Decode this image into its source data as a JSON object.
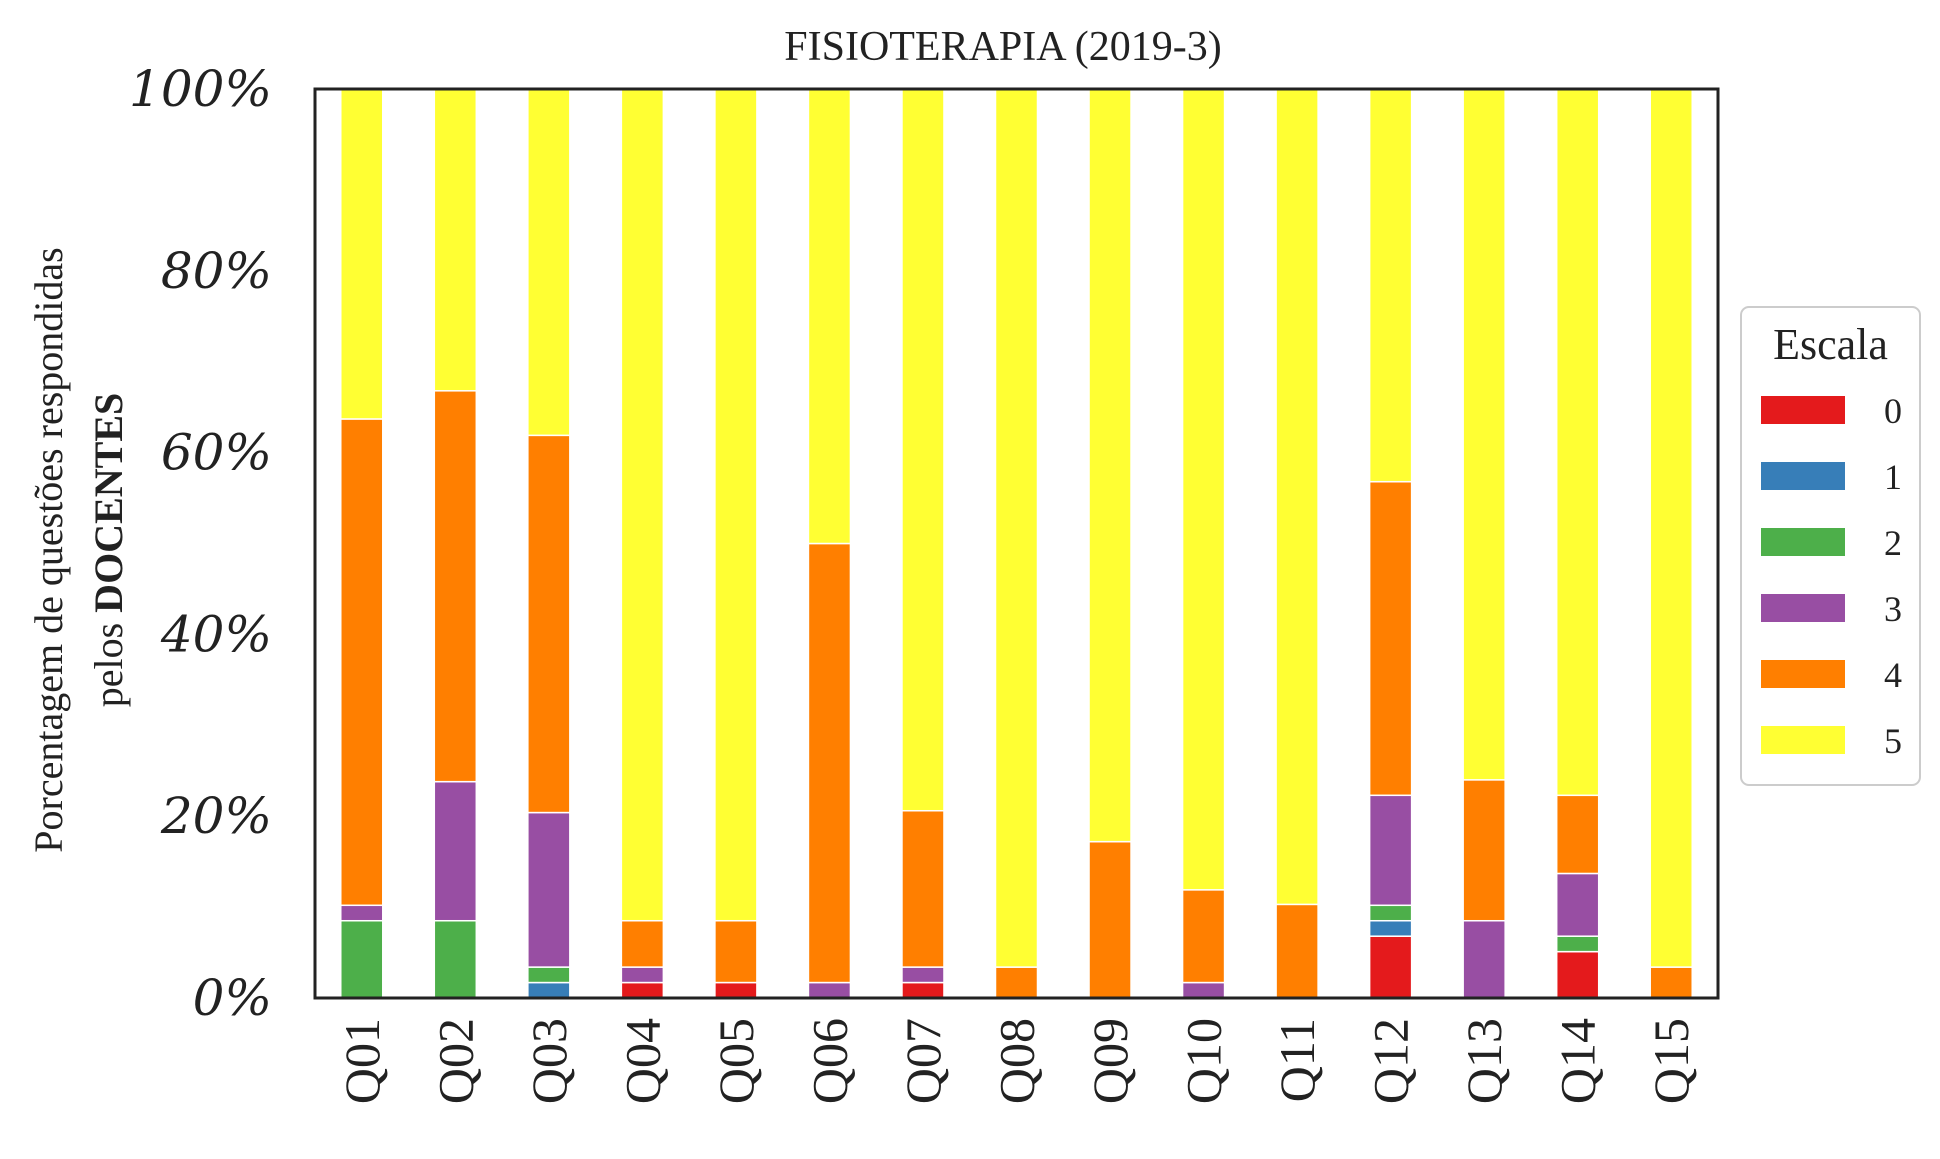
{
  "chart_data": {
    "type": "bar",
    "stacked": true,
    "title": "FISIOTERAPIA (2019-3)",
    "ylabel_line1": "Porcentagem de questões respondidas",
    "ylabel_line2_prefix": "pelos ",
    "ylabel_line2_bold": "DOCENTES",
    "xlabel": "",
    "ylim": [
      0,
      100
    ],
    "yticks": [
      "0%",
      "20%",
      "40%",
      "60%",
      "80%",
      "100%"
    ],
    "ytick_values": [
      0,
      20,
      40,
      60,
      80,
      100
    ],
    "categories": [
      "Q01",
      "Q02",
      "Q03",
      "Q04",
      "Q05",
      "Q06",
      "Q07",
      "Q08",
      "Q09",
      "Q10",
      "Q11",
      "Q12",
      "Q13",
      "Q14",
      "Q15"
    ],
    "legend": {
      "title": "Escala",
      "placement": "right"
    },
    "series": [
      {
        "name": "0",
        "color": "#e41a1c",
        "values": [
          0,
          0,
          0,
          1.7,
          1.7,
          0,
          1.7,
          0,
          0,
          0,
          0,
          6.8,
          0,
          5.1,
          0
        ]
      },
      {
        "name": "1",
        "color": "#377eb8",
        "values": [
          0,
          0,
          1.7,
          0,
          0,
          0,
          0,
          0,
          0,
          0,
          0,
          1.7,
          0,
          0,
          0
        ]
      },
      {
        "name": "2",
        "color": "#4daf4a",
        "values": [
          8.5,
          8.5,
          1.7,
          0,
          0,
          0,
          0,
          0,
          0,
          0,
          0,
          1.7,
          0,
          1.7,
          0
        ]
      },
      {
        "name": "3",
        "color": "#984ea3",
        "values": [
          1.7,
          15.3,
          17.0,
          1.7,
          0,
          1.7,
          1.7,
          0,
          0,
          1.7,
          0,
          12.1,
          8.5,
          6.9,
          0
        ]
      },
      {
        "name": "4",
        "color": "#ff7f00",
        "values": [
          53.5,
          43.0,
          41.5,
          5.1,
          6.8,
          48.3,
          17.2,
          3.4,
          17.2,
          10.2,
          10.3,
          34.5,
          15.5,
          8.6,
          3.4
        ]
      },
      {
        "name": "5",
        "color": "#ffff33",
        "values": [
          36.3,
          33.2,
          38.1,
          91.5,
          91.5,
          50.0,
          79.4,
          96.6,
          82.8,
          88.1,
          89.7,
          43.2,
          76.0,
          77.7,
          96.6
        ]
      }
    ]
  }
}
